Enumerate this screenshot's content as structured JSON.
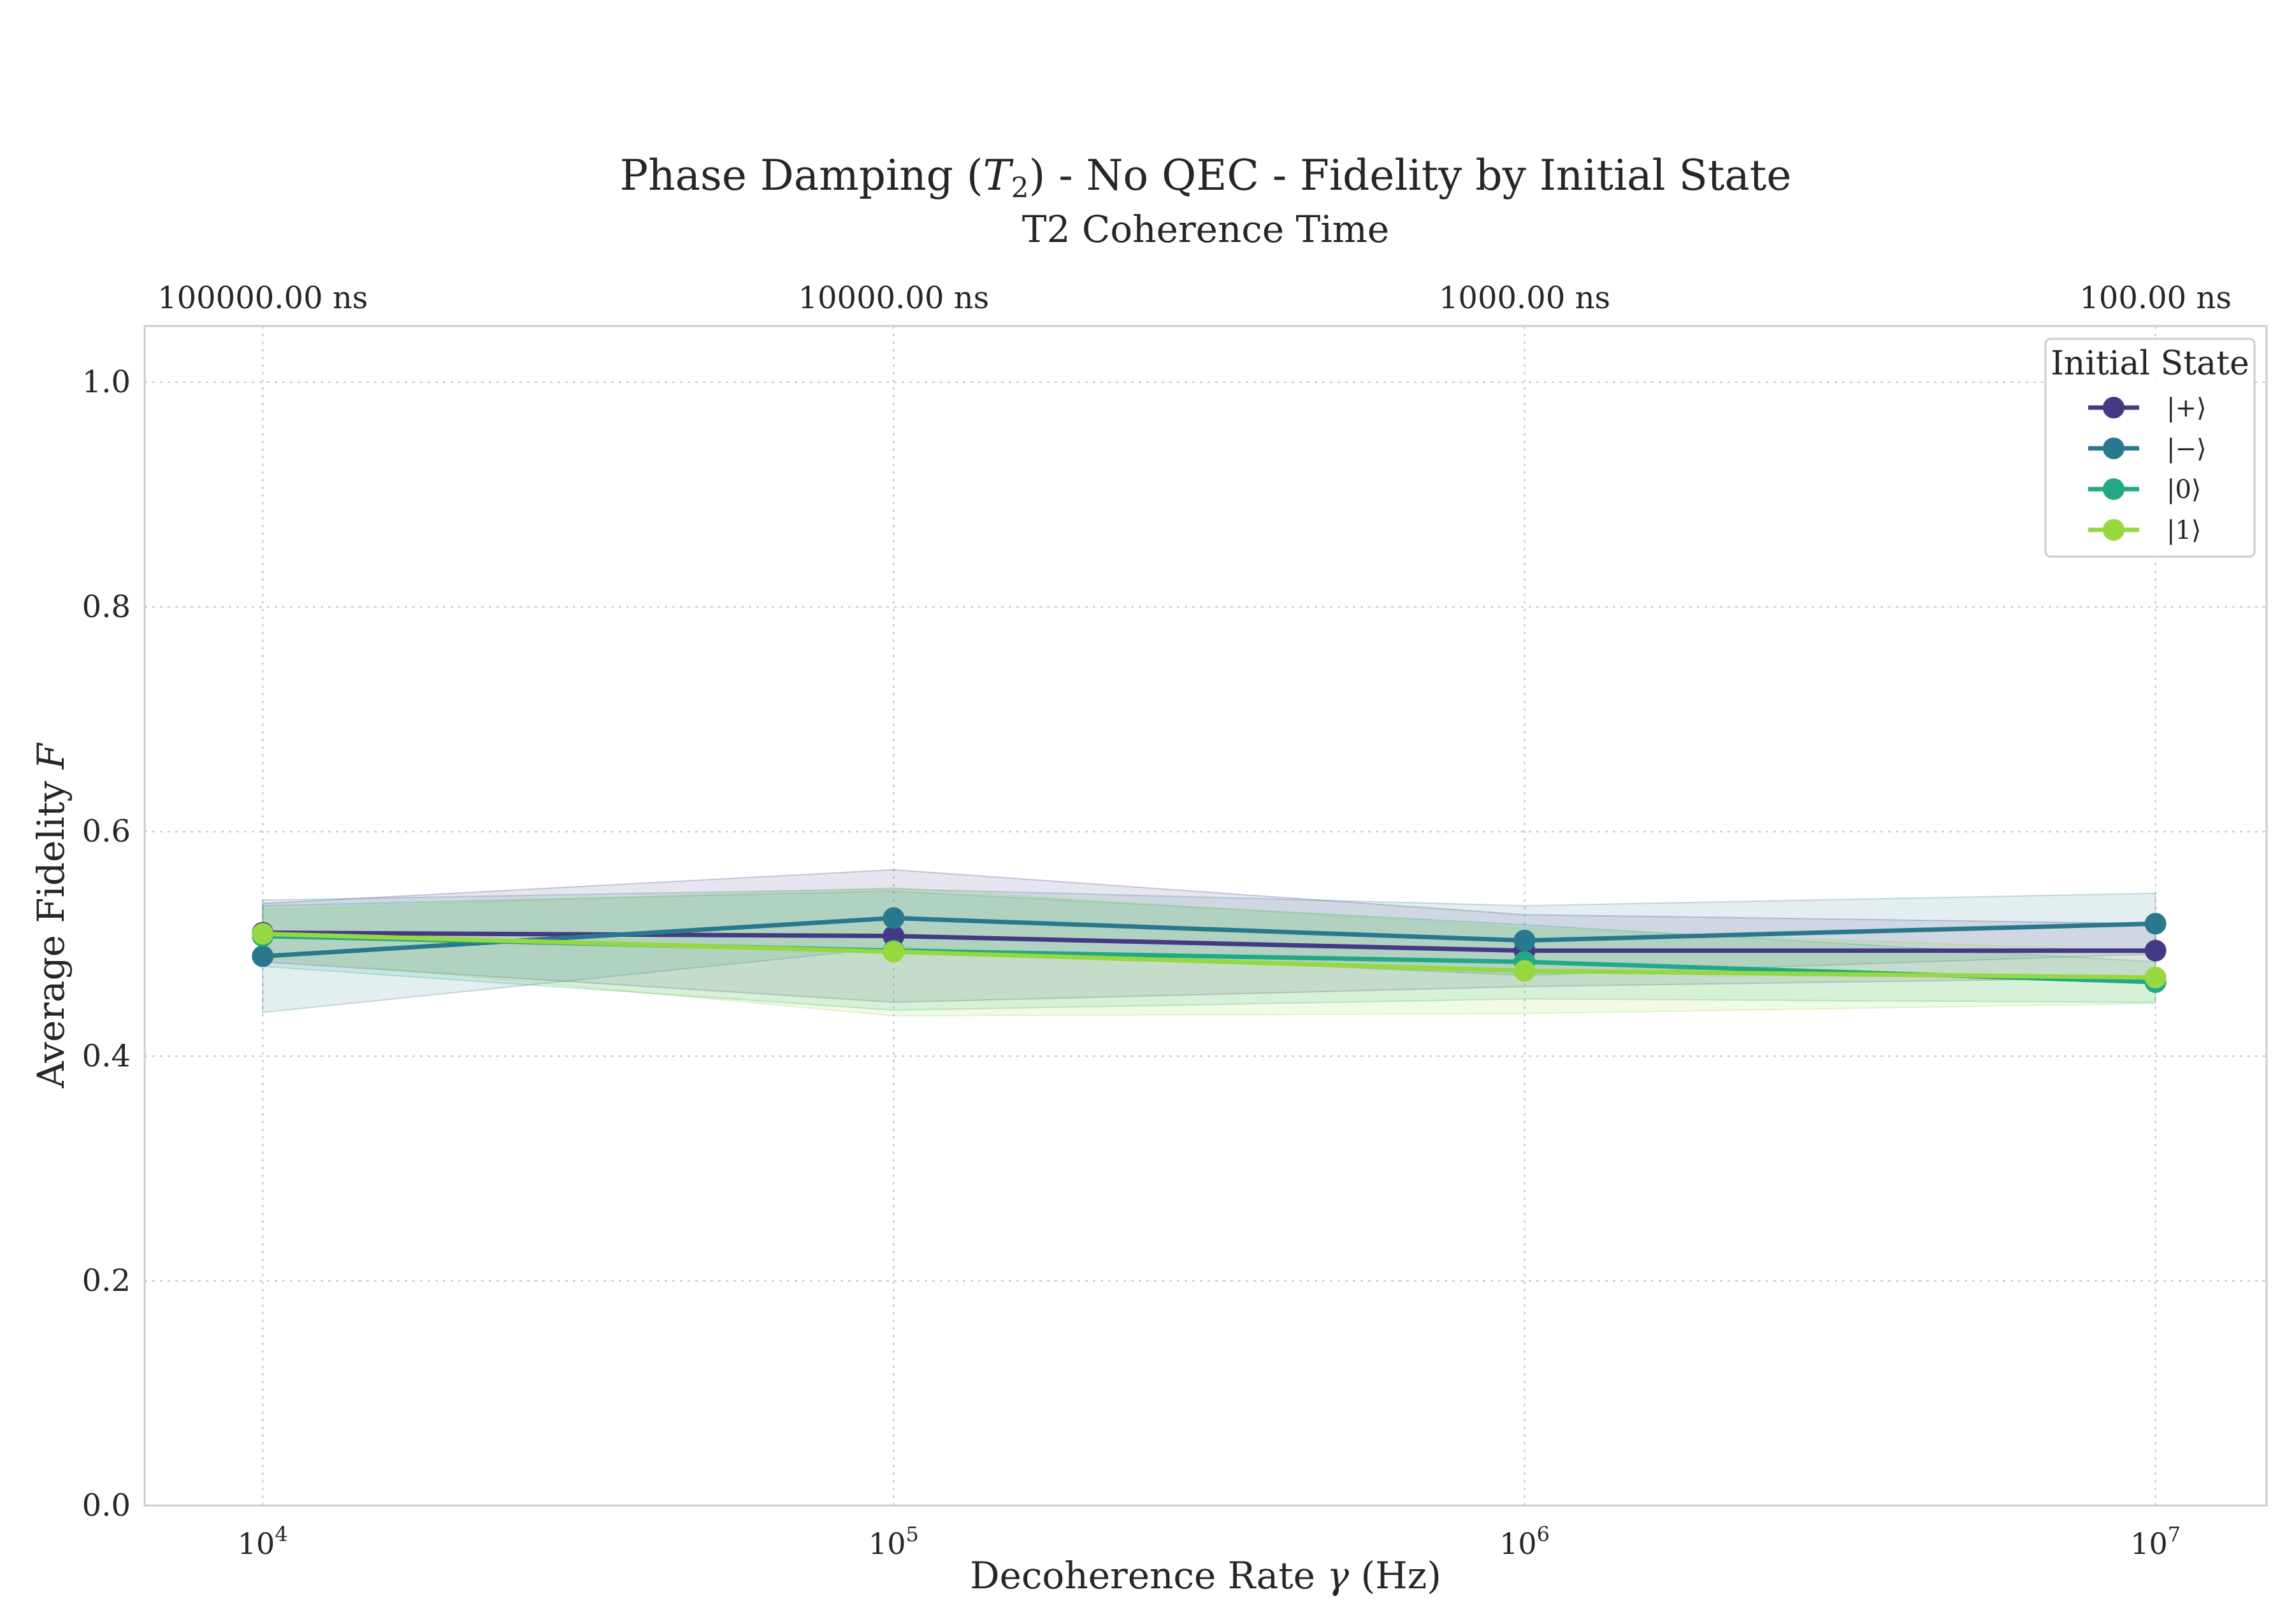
{
  "chart_data": {
    "type": "line",
    "title": "Phase Damping (T₂) - No QEC - Fidelity by Initial State",
    "title_parts": {
      "before": "Phase Damping (",
      "symbol": "T",
      "subscript": "2",
      "after": ") - No QEC - Fidelity by Initial State"
    },
    "secondary_axis_label": "T2 Coherence Time",
    "xlabel": "Decoherence Rate γ (Hz)",
    "xlabel_parts": {
      "before": "Decoherence Rate ",
      "symbol": "γ",
      "after": " (Hz)"
    },
    "ylabel": "Average Fidelity F",
    "ylabel_parts": {
      "before": "Average Fidelity ",
      "symbol": "F"
    },
    "x_scale": "log",
    "x": [
      10000,
      100000,
      1000000,
      10000000
    ],
    "x_tick_labels": [
      {
        "base": "10",
        "exp": "4"
      },
      {
        "base": "10",
        "exp": "5"
      },
      {
        "base": "10",
        "exp": "6"
      },
      {
        "base": "10",
        "exp": "7"
      }
    ],
    "top_tick_labels": [
      "100000.00 ns",
      "10000.00 ns",
      "1000.00 ns",
      "100.00 ns"
    ],
    "xlim": [
      6500,
      15000000
    ],
    "ylim": [
      0.0,
      1.05
    ],
    "y_ticks": [
      0.0,
      0.2,
      0.4,
      0.6,
      0.8,
      1.0
    ],
    "y_tick_labels": [
      "0.0",
      "0.2",
      "0.4",
      "0.6",
      "0.8",
      "1.0"
    ],
    "grid": true,
    "legend": {
      "title": "Initial State",
      "placement": "top-right"
    },
    "series": [
      {
        "name": "|+⟩",
        "color": "#443983",
        "values": [
          0.51,
          0.507,
          0.494,
          0.494
        ],
        "band_lower": [
          0.484,
          0.448,
          0.462,
          0.47
        ],
        "band_upper": [
          0.536,
          0.566,
          0.526,
          0.518
        ]
      },
      {
        "name": "|−⟩",
        "color": "#2a788e",
        "values": [
          0.489,
          0.523,
          0.503,
          0.518
        ],
        "band_lower": [
          0.439,
          0.497,
          0.472,
          0.491
        ],
        "band_upper": [
          0.539,
          0.549,
          0.534,
          0.545
        ]
      },
      {
        "name": "|0⟩",
        "color": "#22a884",
        "values": [
          0.507,
          0.494,
          0.484,
          0.466
        ],
        "band_lower": [
          0.48,
          0.441,
          0.451,
          0.448
        ],
        "band_upper": [
          0.534,
          0.547,
          0.517,
          0.484
        ]
      },
      {
        "name": "|1⟩",
        "color": "#95d840",
        "values": [
          0.509,
          0.493,
          0.476,
          0.47
        ],
        "band_lower": [
          0.488,
          0.436,
          0.438,
          0.447
        ],
        "band_upper": [
          0.53,
          0.55,
          0.514,
          0.493
        ]
      }
    ]
  }
}
